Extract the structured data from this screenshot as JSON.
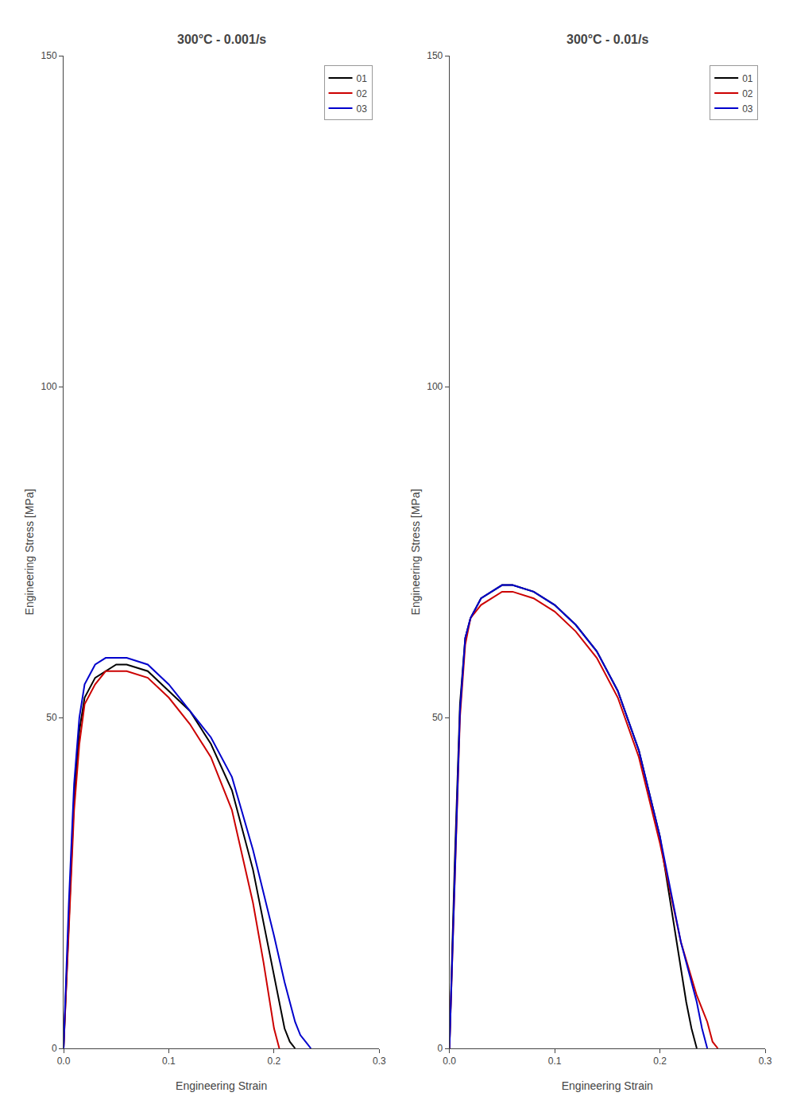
{
  "chart_data": [
    {
      "type": "line",
      "title": "300°C - 0.001/s",
      "xlabel": "Engineering Strain",
      "ylabel": "Engineering Stress [MPa]",
      "xlim": [
        0.0,
        0.3
      ],
      "ylim": [
        0,
        150
      ],
      "xticks": [
        {
          "value": 0.0,
          "label": "0.0"
        },
        0.1,
        0.2,
        0.3
      ],
      "yticks": [
        0,
        50,
        100,
        150
      ],
      "grid": false,
      "legend": "upper right",
      "series": [
        {
          "name": "01",
          "color": "#000000",
          "line_style": "solid",
          "x": [
            0.0,
            0.005,
            0.01,
            0.015,
            0.02,
            0.03,
            0.04,
            0.05,
            0.06,
            0.08,
            0.1,
            0.12,
            0.14,
            0.16,
            0.18,
            0.19,
            0.2,
            0.205,
            0.21,
            0.215,
            0.22
          ],
          "values": [
            0,
            20,
            38,
            48,
            53,
            56,
            57,
            58,
            58,
            57,
            54,
            51,
            46,
            39,
            27,
            19,
            11,
            7,
            3,
            1,
            0
          ]
        },
        {
          "name": "02",
          "color": "#cc0000",
          "line_style": "solid",
          "x": [
            0.0,
            0.005,
            0.01,
            0.015,
            0.02,
            0.03,
            0.04,
            0.05,
            0.06,
            0.08,
            0.1,
            0.12,
            0.14,
            0.16,
            0.18,
            0.19,
            0.195,
            0.2,
            0.205
          ],
          "values": [
            0,
            18,
            36,
            46,
            52,
            55,
            57,
            57,
            57,
            56,
            53,
            49,
            44,
            36,
            22,
            13,
            8,
            3,
            0
          ]
        },
        {
          "name": "03",
          "color": "#0000cc",
          "line_style": "solid",
          "x": [
            0.0,
            0.005,
            0.01,
            0.015,
            0.02,
            0.03,
            0.04,
            0.05,
            0.06,
            0.08,
            0.1,
            0.12,
            0.14,
            0.16,
            0.18,
            0.2,
            0.21,
            0.22,
            0.225,
            0.23,
            0.235
          ],
          "values": [
            0,
            22,
            40,
            50,
            55,
            58,
            59,
            59,
            59,
            58,
            55,
            51,
            47,
            41,
            30,
            17,
            10,
            4,
            2,
            1,
            0
          ]
        }
      ]
    },
    {
      "type": "line",
      "title": "300°C - 0.01/s",
      "xlabel": "Engineering Strain",
      "ylabel": "Engineering Stress [MPa]",
      "xlim": [
        0.0,
        0.3
      ],
      "ylim": [
        0,
        150
      ],
      "xticks": [
        {
          "value": 0.0,
          "label": "0.0"
        },
        0.1,
        0.2,
        0.3
      ],
      "yticks": [
        0,
        50,
        100,
        150
      ],
      "grid": false,
      "legend": "upper right",
      "series": [
        {
          "name": "01",
          "color": "#000000",
          "line_style": "solid",
          "x": [
            0.0,
            0.005,
            0.01,
            0.015,
            0.02,
            0.03,
            0.04,
            0.05,
            0.06,
            0.08,
            0.1,
            0.12,
            0.14,
            0.16,
            0.18,
            0.2,
            0.21,
            0.22,
            0.225,
            0.23,
            0.235
          ],
          "values": [
            0,
            28,
            52,
            62,
            65,
            68,
            69,
            70,
            70,
            69,
            67,
            64,
            60,
            54,
            45,
            32,
            22,
            12,
            7,
            3,
            0
          ]
        },
        {
          "name": "02",
          "color": "#cc0000",
          "line_style": "solid",
          "x": [
            0.0,
            0.005,
            0.01,
            0.015,
            0.02,
            0.03,
            0.04,
            0.05,
            0.06,
            0.08,
            0.1,
            0.12,
            0.14,
            0.16,
            0.18,
            0.2,
            0.22,
            0.235,
            0.245,
            0.25,
            0.255
          ],
          "values": [
            0,
            26,
            50,
            61,
            65,
            67,
            68,
            69,
            69,
            68,
            66,
            63,
            59,
            53,
            44,
            31,
            16,
            8,
            4,
            1,
            0
          ]
        },
        {
          "name": "03",
          "color": "#0000cc",
          "line_style": "solid",
          "x": [
            0.0,
            0.005,
            0.01,
            0.015,
            0.02,
            0.03,
            0.04,
            0.05,
            0.06,
            0.08,
            0.1,
            0.12,
            0.14,
            0.16,
            0.18,
            0.2,
            0.22,
            0.235,
            0.24,
            0.245
          ],
          "values": [
            0,
            27,
            51,
            62,
            65,
            68,
            69,
            70,
            70,
            69,
            67,
            64,
            60,
            54,
            45,
            32,
            16,
            7,
            3,
            0
          ]
        }
      ]
    }
  ]
}
